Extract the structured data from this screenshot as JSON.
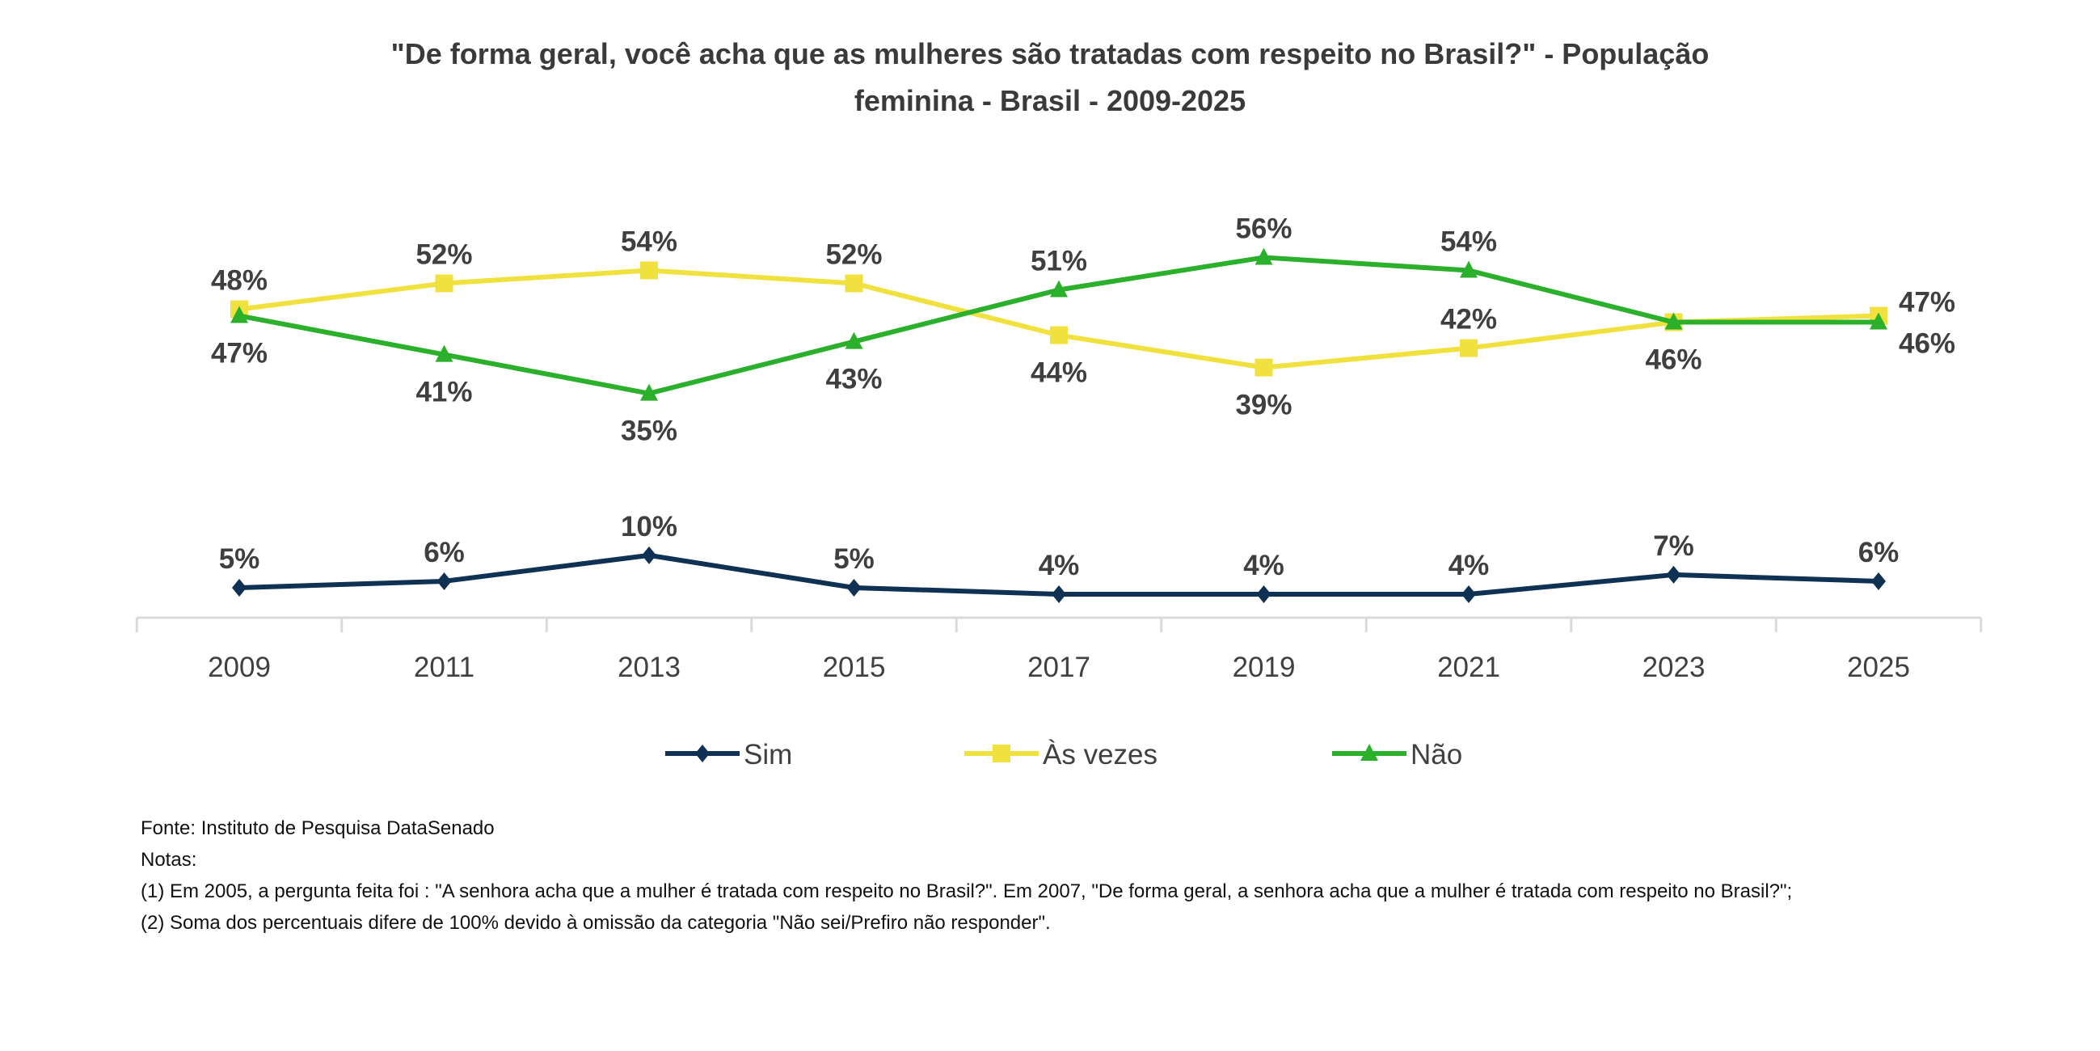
{
  "chart_data": {
    "type": "line",
    "title": "\"De forma geral, você acha que as mulheres são tratadas com respeito no Brasil?\" - População feminina - Brasil - 2009-2025",
    "title_lines": [
      "\"De forma geral, você acha que as mulheres são tratadas com respeito no Brasil?\" - População",
      "feminina - Brasil - 2009-2025"
    ],
    "xlabel": "",
    "ylabel": "",
    "categories": [
      "2009",
      "2011",
      "2013",
      "2015",
      "2017",
      "2019",
      "2021",
      "2023",
      "2025"
    ],
    "ylim": [
      0,
      65
    ],
    "grid": false,
    "y_axis_visible": false,
    "legend_position": "bottom",
    "series": [
      {
        "name": "Sim",
        "color": "#0f3154",
        "marker": "diamond",
        "values": [
          5,
          6,
          10,
          5,
          4,
          4,
          4,
          7,
          6
        ],
        "labels": [
          "5%",
          "6%",
          "10%",
          "5%",
          "4%",
          "4%",
          "4%",
          "7%",
          "6%"
        ],
        "label_pos": [
          "above",
          "above",
          "above",
          "above",
          "above",
          "above",
          "above",
          "above",
          "above"
        ]
      },
      {
        "name": "Às vezes",
        "color": "#f0e13e",
        "marker": "square",
        "values": [
          48,
          52,
          54,
          52,
          44,
          39,
          42,
          46,
          47
        ],
        "labels": [
          "48%",
          "52%",
          "54%",
          "52%",
          "44%",
          "39%",
          "42%",
          "",
          "47%"
        ],
        "label_pos": [
          "above",
          "above",
          "above",
          "above",
          "below",
          "below",
          "above",
          "above",
          "right"
        ]
      },
      {
        "name": "Não",
        "color": "#2bb02b",
        "marker": "triangle",
        "values": [
          47,
          41,
          35,
          43,
          51,
          56,
          54,
          46,
          46
        ],
        "labels": [
          "47%",
          "41%",
          "35%",
          "43%",
          "51%",
          "56%",
          "54%",
          "46%",
          "46%"
        ],
        "label_pos": [
          "below",
          "below",
          "below",
          "below",
          "above",
          "above",
          "above",
          "below",
          "right"
        ]
      }
    ]
  },
  "notes": {
    "source": "Fonte: Instituto de Pesquisa DataSenado",
    "heading": "Notas:",
    "note1": "(1)  Em 2005, a pergunta feita foi : \"A senhora acha que a mulher é tratada com respeito no Brasil?\". Em 2007, \"De forma geral, a senhora acha que a mulher é tratada com respeito no Brasil?\";",
    "note2": "(2) Soma dos percentuais difere de 100% devido à omissão da categoria \"Não sei/Prefiro não responder\"."
  }
}
